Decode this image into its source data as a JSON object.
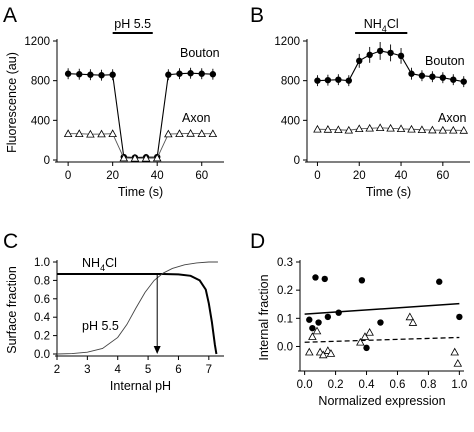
{
  "panels": {
    "a": "A",
    "b": "B",
    "c": "C",
    "d": "D"
  },
  "chart_data": [
    {
      "type": "line",
      "panel": "A",
      "xlabel": "Time (s)",
      "ylabel": "Fluorescence (au)",
      "xlim": [
        -5,
        70
      ],
      "ylim": [
        0,
        1200
      ],
      "xticks": [
        0,
        20,
        40,
        60
      ],
      "yticks": [
        0,
        400,
        800,
        1200
      ],
      "annotation": {
        "label": "pH 5.5",
        "x": [
          20,
          38
        ]
      },
      "series": [
        {
          "name": "Bouton",
          "marker": "filled-circle",
          "x": [
            0,
            5,
            10,
            15,
            20,
            25,
            30,
            35,
            40,
            45,
            50,
            55,
            60,
            65
          ],
          "y": [
            870,
            865,
            860,
            855,
            860,
            30,
            25,
            28,
            30,
            860,
            870,
            875,
            870,
            865
          ],
          "err": [
            55,
            55,
            55,
            55,
            55,
            20,
            20,
            20,
            20,
            55,
            55,
            55,
            55,
            55
          ]
        },
        {
          "name": "Axon",
          "marker": "open-triangle",
          "x": [
            0,
            5,
            10,
            15,
            20,
            25,
            30,
            35,
            40,
            45,
            50,
            55,
            60,
            65
          ],
          "y": [
            265,
            265,
            260,
            262,
            265,
            20,
            18,
            18,
            20,
            262,
            265,
            268,
            265,
            265
          ],
          "err": [
            15,
            15,
            15,
            15,
            15,
            8,
            8,
            8,
            8,
            15,
            15,
            15,
            15,
            15
          ]
        }
      ]
    },
    {
      "type": "line",
      "panel": "B",
      "xlabel": "Time (s)",
      "ylabel": "",
      "xlim": [
        -5,
        73
      ],
      "ylim": [
        0,
        1200
      ],
      "xticks": [
        0,
        20,
        40,
        60
      ],
      "yticks": [
        0,
        400,
        800,
        1200
      ],
      "annotation": {
        "label": "NH",
        "sub": "4",
        "tail": "Cl",
        "x": [
          18,
          43
        ]
      },
      "series": [
        {
          "name": "Bouton",
          "marker": "filled-circle",
          "x": [
            0,
            5,
            10,
            15,
            20,
            25,
            30,
            35,
            40,
            45,
            50,
            55,
            60,
            65,
            70
          ],
          "y": [
            800,
            805,
            810,
            800,
            1000,
            1060,
            1100,
            1080,
            1050,
            870,
            850,
            840,
            830,
            810,
            790
          ],
          "err": [
            55,
            55,
            55,
            55,
            70,
            80,
            90,
            85,
            80,
            60,
            55,
            55,
            55,
            55,
            55
          ]
        },
        {
          "name": "Axon",
          "marker": "open-triangle",
          "x": [
            0,
            5,
            10,
            15,
            20,
            25,
            30,
            35,
            40,
            45,
            50,
            55,
            60,
            65,
            70
          ],
          "y": [
            310,
            308,
            305,
            300,
            315,
            320,
            325,
            320,
            315,
            310,
            305,
            302,
            300,
            300,
            298
          ],
          "err": [
            20,
            20,
            20,
            20,
            22,
            22,
            25,
            22,
            22,
            20,
            20,
            20,
            20,
            20,
            20
          ]
        }
      ]
    },
    {
      "type": "line",
      "panel": "C",
      "xlabel": "Internal pH",
      "ylabel": "Surface fraction",
      "xlim": [
        2,
        7.5
      ],
      "ylim": [
        0,
        1.0
      ],
      "xticks": [
        2,
        3,
        4,
        5,
        6,
        7
      ],
      "yticks": [
        0.0,
        0.2,
        0.4,
        0.6,
        0.8,
        1.0
      ],
      "arrow": {
        "x": 5.3,
        "y_from": 0.87,
        "y_to": 0.0
      },
      "series": [
        {
          "name": "NH4Cl",
          "label_main": "NH",
          "label_sub": "4",
          "label_tail": "Cl",
          "style": "thick",
          "x": [
            2.0,
            3.0,
            4.0,
            5.0,
            5.5,
            6.0,
            6.4,
            6.7,
            6.9,
            7.0,
            7.1,
            7.2,
            7.25
          ],
          "y": [
            0.87,
            0.87,
            0.87,
            0.87,
            0.869,
            0.865,
            0.85,
            0.8,
            0.7,
            0.55,
            0.35,
            0.1,
            0.0
          ]
        },
        {
          "name": "pH 5.5",
          "style": "thin",
          "x": [
            2.0,
            2.5,
            3.0,
            3.5,
            4.0,
            4.3,
            4.6,
            4.9,
            5.2,
            5.5,
            5.8,
            6.2,
            6.6,
            7.0,
            7.3
          ],
          "y": [
            0.0,
            0.005,
            0.02,
            0.06,
            0.18,
            0.32,
            0.5,
            0.67,
            0.8,
            0.88,
            0.93,
            0.97,
            0.99,
            1.0,
            1.0
          ]
        }
      ]
    },
    {
      "type": "scatter",
      "panel": "D",
      "xlabel": "Normalized expression",
      "ylabel": "Internal fraction",
      "xlim": [
        -0.03,
        1.03
      ],
      "ylim": [
        -0.08,
        0.3
      ],
      "xticks": [
        0.0,
        0.2,
        0.4,
        0.6,
        0.8,
        1.0
      ],
      "yticks": [
        0.0,
        0.1,
        0.2,
        0.3
      ],
      "series": [
        {
          "name": "Bouton",
          "marker": "filled-circle",
          "fit": {
            "style": "solid",
            "y0": 0.115,
            "y1": 0.152
          },
          "points": [
            [
              0.03,
              0.095
            ],
            [
              0.05,
              0.065
            ],
            [
              0.07,
              0.245
            ],
            [
              0.09,
              0.085
            ],
            [
              0.13,
              0.24
            ],
            [
              0.15,
              0.105
            ],
            [
              0.22,
              0.12
            ],
            [
              0.37,
              0.235
            ],
            [
              0.4,
              -0.005
            ],
            [
              0.49,
              0.085
            ],
            [
              0.87,
              0.23
            ],
            [
              1.0,
              0.105
            ]
          ]
        },
        {
          "name": "Axon",
          "marker": "open-triangle",
          "fit": {
            "style": "dashed",
            "y0": 0.015,
            "y1": 0.032
          },
          "points": [
            [
              0.03,
              -0.02
            ],
            [
              0.05,
              0.035
            ],
            [
              0.08,
              0.055
            ],
            [
              0.1,
              -0.02
            ],
            [
              0.12,
              -0.03
            ],
            [
              0.15,
              -0.015
            ],
            [
              0.17,
              -0.025
            ],
            [
              0.36,
              0.015
            ],
            [
              0.39,
              0.035
            ],
            [
              0.42,
              0.05
            ],
            [
              0.68,
              0.105
            ],
            [
              0.7,
              0.085
            ],
            [
              0.97,
              -0.02
            ],
            [
              0.99,
              -0.06
            ]
          ]
        }
      ]
    }
  ]
}
